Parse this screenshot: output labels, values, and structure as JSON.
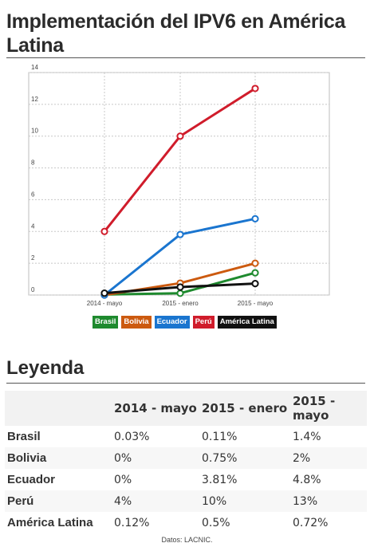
{
  "title": "Implementación del IPV6 en América Latina",
  "chart_data": {
    "type": "line",
    "title": "",
    "xlabel": "",
    "ylabel": "",
    "categories": [
      "2014 - mayo",
      "2015 - enero",
      "2015 - mayo"
    ],
    "ylim": [
      0,
      14
    ],
    "yticks": [
      0,
      2,
      4,
      6,
      8,
      10,
      12,
      14
    ],
    "grid": true,
    "legend_placement": "bottom",
    "series": [
      {
        "name": "Brasil",
        "color": "#1e8a2e",
        "values": [
          0.03,
          0.11,
          1.4
        ]
      },
      {
        "name": "Bolivia",
        "color": "#cc5a0f",
        "values": [
          0,
          0.75,
          2
        ]
      },
      {
        "name": "Ecuador",
        "color": "#1a75cf",
        "values": [
          0,
          3.81,
          4.8
        ]
      },
      {
        "name": "Perú",
        "color": "#d01c2b",
        "values": [
          4,
          10,
          13
        ]
      },
      {
        "name": "América Latina",
        "color": "#111111",
        "values": [
          0.12,
          0.5,
          0.72
        ]
      }
    ]
  },
  "legend_title": "Leyenda",
  "table": {
    "headers": [
      "",
      "2014 - mayo",
      "2015 - enero",
      "2015 - mayo"
    ],
    "rows": [
      [
        "Brasil",
        "0.03%",
        "0.11%",
        "1.4%"
      ],
      [
        "Bolivia",
        "0%",
        "0.75%",
        "2%"
      ],
      [
        "Ecuador",
        "0%",
        "3.81%",
        "4.8%"
      ],
      [
        "Perú",
        "4%",
        "10%",
        "13%"
      ],
      [
        "América Latina",
        "0.12%",
        "0.5%",
        "0.72%"
      ]
    ]
  },
  "source": "Datos: LACNIC."
}
